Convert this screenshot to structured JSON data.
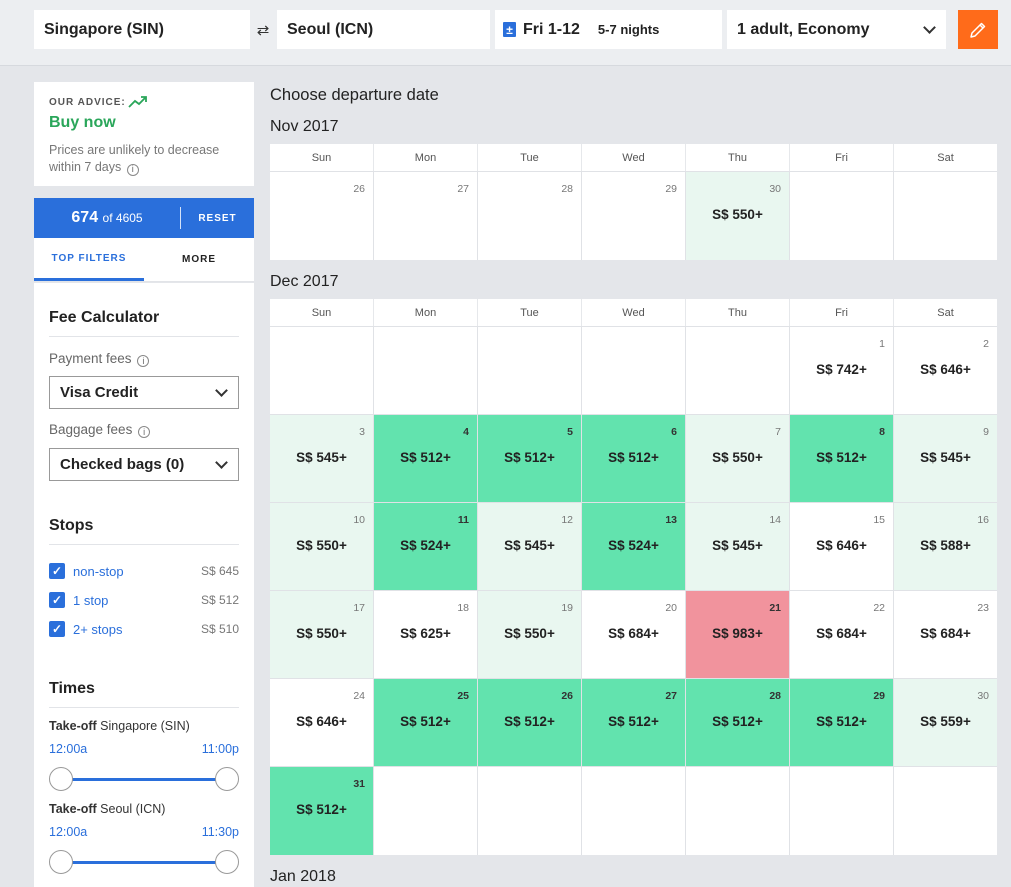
{
  "search": {
    "origin": "Singapore (SIN)",
    "swap_icon": "⇄",
    "destination": "Seoul (ICN)",
    "calendar_icon": "±",
    "dates": "Fri 1-12",
    "nights": "5-7 nights",
    "travelers": "1 adult, Economy",
    "edit_icon": "pencil-icon"
  },
  "advice": {
    "label": "OUR ADVICE:",
    "title": "Buy now",
    "text": "Prices are unlikely to decrease within 7 days",
    "info": "i"
  },
  "results": {
    "shown": "674",
    "of_text": "of 4605",
    "reset": "RESET"
  },
  "filter_tabs": [
    "TOP FILTERS",
    "MORE"
  ],
  "fee_calculator": {
    "title": "Fee Calculator",
    "payment_label": "Payment fees",
    "payment_value": "Visa Credit",
    "baggage_label": "Baggage fees",
    "baggage_value": "Checked bags (0)",
    "info": "i"
  },
  "stops": {
    "title": "Stops",
    "check": "✓",
    "items": [
      {
        "label": "non-stop",
        "price": "S$ 645"
      },
      {
        "label": "1 stop",
        "price": "S$ 512"
      },
      {
        "label": "2+ stops",
        "price": "S$ 510"
      }
    ]
  },
  "times": {
    "title": "Times",
    "takeoff_word": "Take-off",
    "sliders": [
      {
        "city": "Singapore (SIN)",
        "min": "12:00a",
        "max": "11:00p"
      },
      {
        "city": "Seoul (ICN)",
        "min": "12:00a",
        "max": "11:30p"
      }
    ]
  },
  "main": {
    "title": "Choose departure date",
    "weekdays": [
      "Sun",
      "Mon",
      "Tue",
      "Wed",
      "Thu",
      "Fri",
      "Sat"
    ],
    "months": [
      {
        "label": "Nov 2017",
        "rows": [
          [
            {
              "day": "26",
              "price": "",
              "level": ""
            },
            {
              "day": "27",
              "price": "",
              "level": ""
            },
            {
              "day": "28",
              "price": "",
              "level": ""
            },
            {
              "day": "29",
              "price": "",
              "level": ""
            },
            {
              "day": "30",
              "price": "S$ 550+",
              "level": "g"
            },
            {
              "day": "",
              "price": "",
              "level": ""
            },
            {
              "day": "",
              "price": "",
              "level": ""
            }
          ]
        ]
      },
      {
        "label": "Dec 2017",
        "rows": [
          [
            {
              "day": "",
              "price": "",
              "level": ""
            },
            {
              "day": "",
              "price": "",
              "level": ""
            },
            {
              "day": "",
              "price": "",
              "level": ""
            },
            {
              "day": "",
              "price": "",
              "level": ""
            },
            {
              "day": "",
              "price": "",
              "level": ""
            },
            {
              "day": "1",
              "price": "S$ 742+",
              "level": ""
            },
            {
              "day": "2",
              "price": "S$ 646+",
              "level": ""
            }
          ],
          [
            {
              "day": "3",
              "price": "S$ 545+",
              "level": "g"
            },
            {
              "day": "4",
              "price": "S$ 512+",
              "level": "G"
            },
            {
              "day": "5",
              "price": "S$ 512+",
              "level": "G"
            },
            {
              "day": "6",
              "price": "S$ 512+",
              "level": "G"
            },
            {
              "day": "7",
              "price": "S$ 550+",
              "level": "g"
            },
            {
              "day": "8",
              "price": "S$ 512+",
              "level": "G"
            },
            {
              "day": "9",
              "price": "S$ 545+",
              "level": "g"
            }
          ],
          [
            {
              "day": "10",
              "price": "S$ 550+",
              "level": "g"
            },
            {
              "day": "11",
              "price": "S$ 524+",
              "level": "G"
            },
            {
              "day": "12",
              "price": "S$ 545+",
              "level": "g"
            },
            {
              "day": "13",
              "price": "S$ 524+",
              "level": "G"
            },
            {
              "day": "14",
              "price": "S$ 545+",
              "level": "g"
            },
            {
              "day": "15",
              "price": "S$ 646+",
              "level": ""
            },
            {
              "day": "16",
              "price": "S$ 588+",
              "level": "g"
            }
          ],
          [
            {
              "day": "17",
              "price": "S$ 550+",
              "level": "g"
            },
            {
              "day": "18",
              "price": "S$ 625+",
              "level": ""
            },
            {
              "day": "19",
              "price": "S$ 550+",
              "level": "g"
            },
            {
              "day": "20",
              "price": "S$ 684+",
              "level": ""
            },
            {
              "day": "21",
              "price": "S$ 983+",
              "level": "R"
            },
            {
              "day": "22",
              "price": "S$ 684+",
              "level": ""
            },
            {
              "day": "23",
              "price": "S$ 684+",
              "level": ""
            }
          ],
          [
            {
              "day": "24",
              "price": "S$ 646+",
              "level": ""
            },
            {
              "day": "25",
              "price": "S$ 512+",
              "level": "G"
            },
            {
              "day": "26",
              "price": "S$ 512+",
              "level": "G"
            },
            {
              "day": "27",
              "price": "S$ 512+",
              "level": "G"
            },
            {
              "day": "28",
              "price": "S$ 512+",
              "level": "G"
            },
            {
              "day": "29",
              "price": "S$ 512+",
              "level": "G"
            },
            {
              "day": "30",
              "price": "S$ 559+",
              "level": "g"
            }
          ],
          [
            {
              "day": "31",
              "price": "S$ 512+",
              "level": "G"
            },
            {
              "day": "",
              "price": "",
              "level": ""
            },
            {
              "day": "",
              "price": "",
              "level": ""
            },
            {
              "day": "",
              "price": "",
              "level": ""
            },
            {
              "day": "",
              "price": "",
              "level": ""
            },
            {
              "day": "",
              "price": "",
              "level": ""
            },
            {
              "day": "",
              "price": "",
              "level": ""
            }
          ]
        ]
      },
      {
        "label": "Jan 2018",
        "rows": []
      }
    ]
  },
  "colors": {
    "accent_blue": "#2a6fdb",
    "cheap_green": "#62e3ae",
    "light_green": "#e9f7f0",
    "expensive_red": "#f1939d",
    "advice_green": "#2aa65a",
    "edit_orange": "#ff6b1a"
  }
}
